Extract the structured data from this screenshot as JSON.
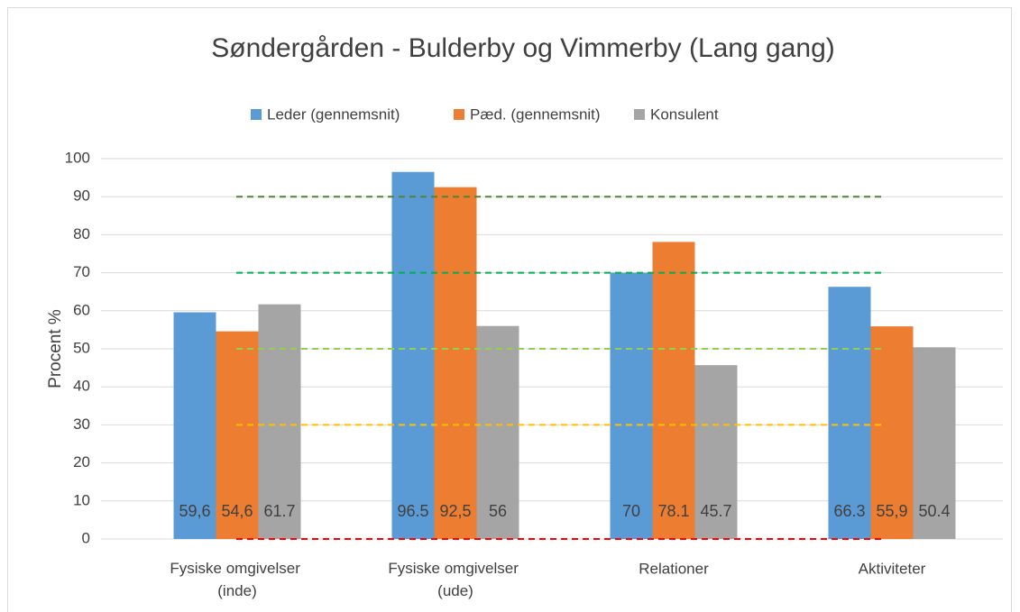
{
  "chart_data": {
    "type": "bar",
    "title": "Søndergården - Bulderby og Vimmerby (Lang gang)",
    "y_label": "Procent %",
    "categories": [
      "Fysiske omgivelser (inde)",
      "Fysiske omgivelser (ude)",
      "Relationer",
      "Aktiviteter"
    ],
    "series": [
      {
        "name": "Leder (gennemsnit)",
        "color": "#5b9bd5",
        "values": [
          59.6,
          96.5,
          70,
          66.3
        ],
        "value_labels": [
          "59,6",
          "96.5",
          "70",
          "66.3"
        ]
      },
      {
        "name": "Pæd. (gennemsnit)",
        "color": "#ed7d31",
        "values": [
          54.6,
          92.5,
          78.1,
          55.9
        ],
        "value_labels": [
          "54,6",
          "92,5",
          "78.1",
          "55,9"
        ]
      },
      {
        "name": "Konsulent",
        "color": "#a5a5a5",
        "values": [
          61.7,
          56,
          45.7,
          50.4
        ]
      }
    ],
    "reference_lines": [
      {
        "value": 0,
        "color": "#ff0000"
      },
      {
        "value": 30,
        "color": "#ffc000"
      },
      {
        "value": 50,
        "color": "#92d050"
      },
      {
        "value": 70,
        "color": "#00b050"
      },
      {
        "value": 90,
        "color": "#548235"
      }
    ],
    "ylim": [
      0,
      100
    ],
    "yticks": [
      0,
      10,
      20,
      30,
      40,
      50,
      60,
      70,
      80,
      90,
      100
    ],
    "grid": true,
    "legend": "top"
  }
}
